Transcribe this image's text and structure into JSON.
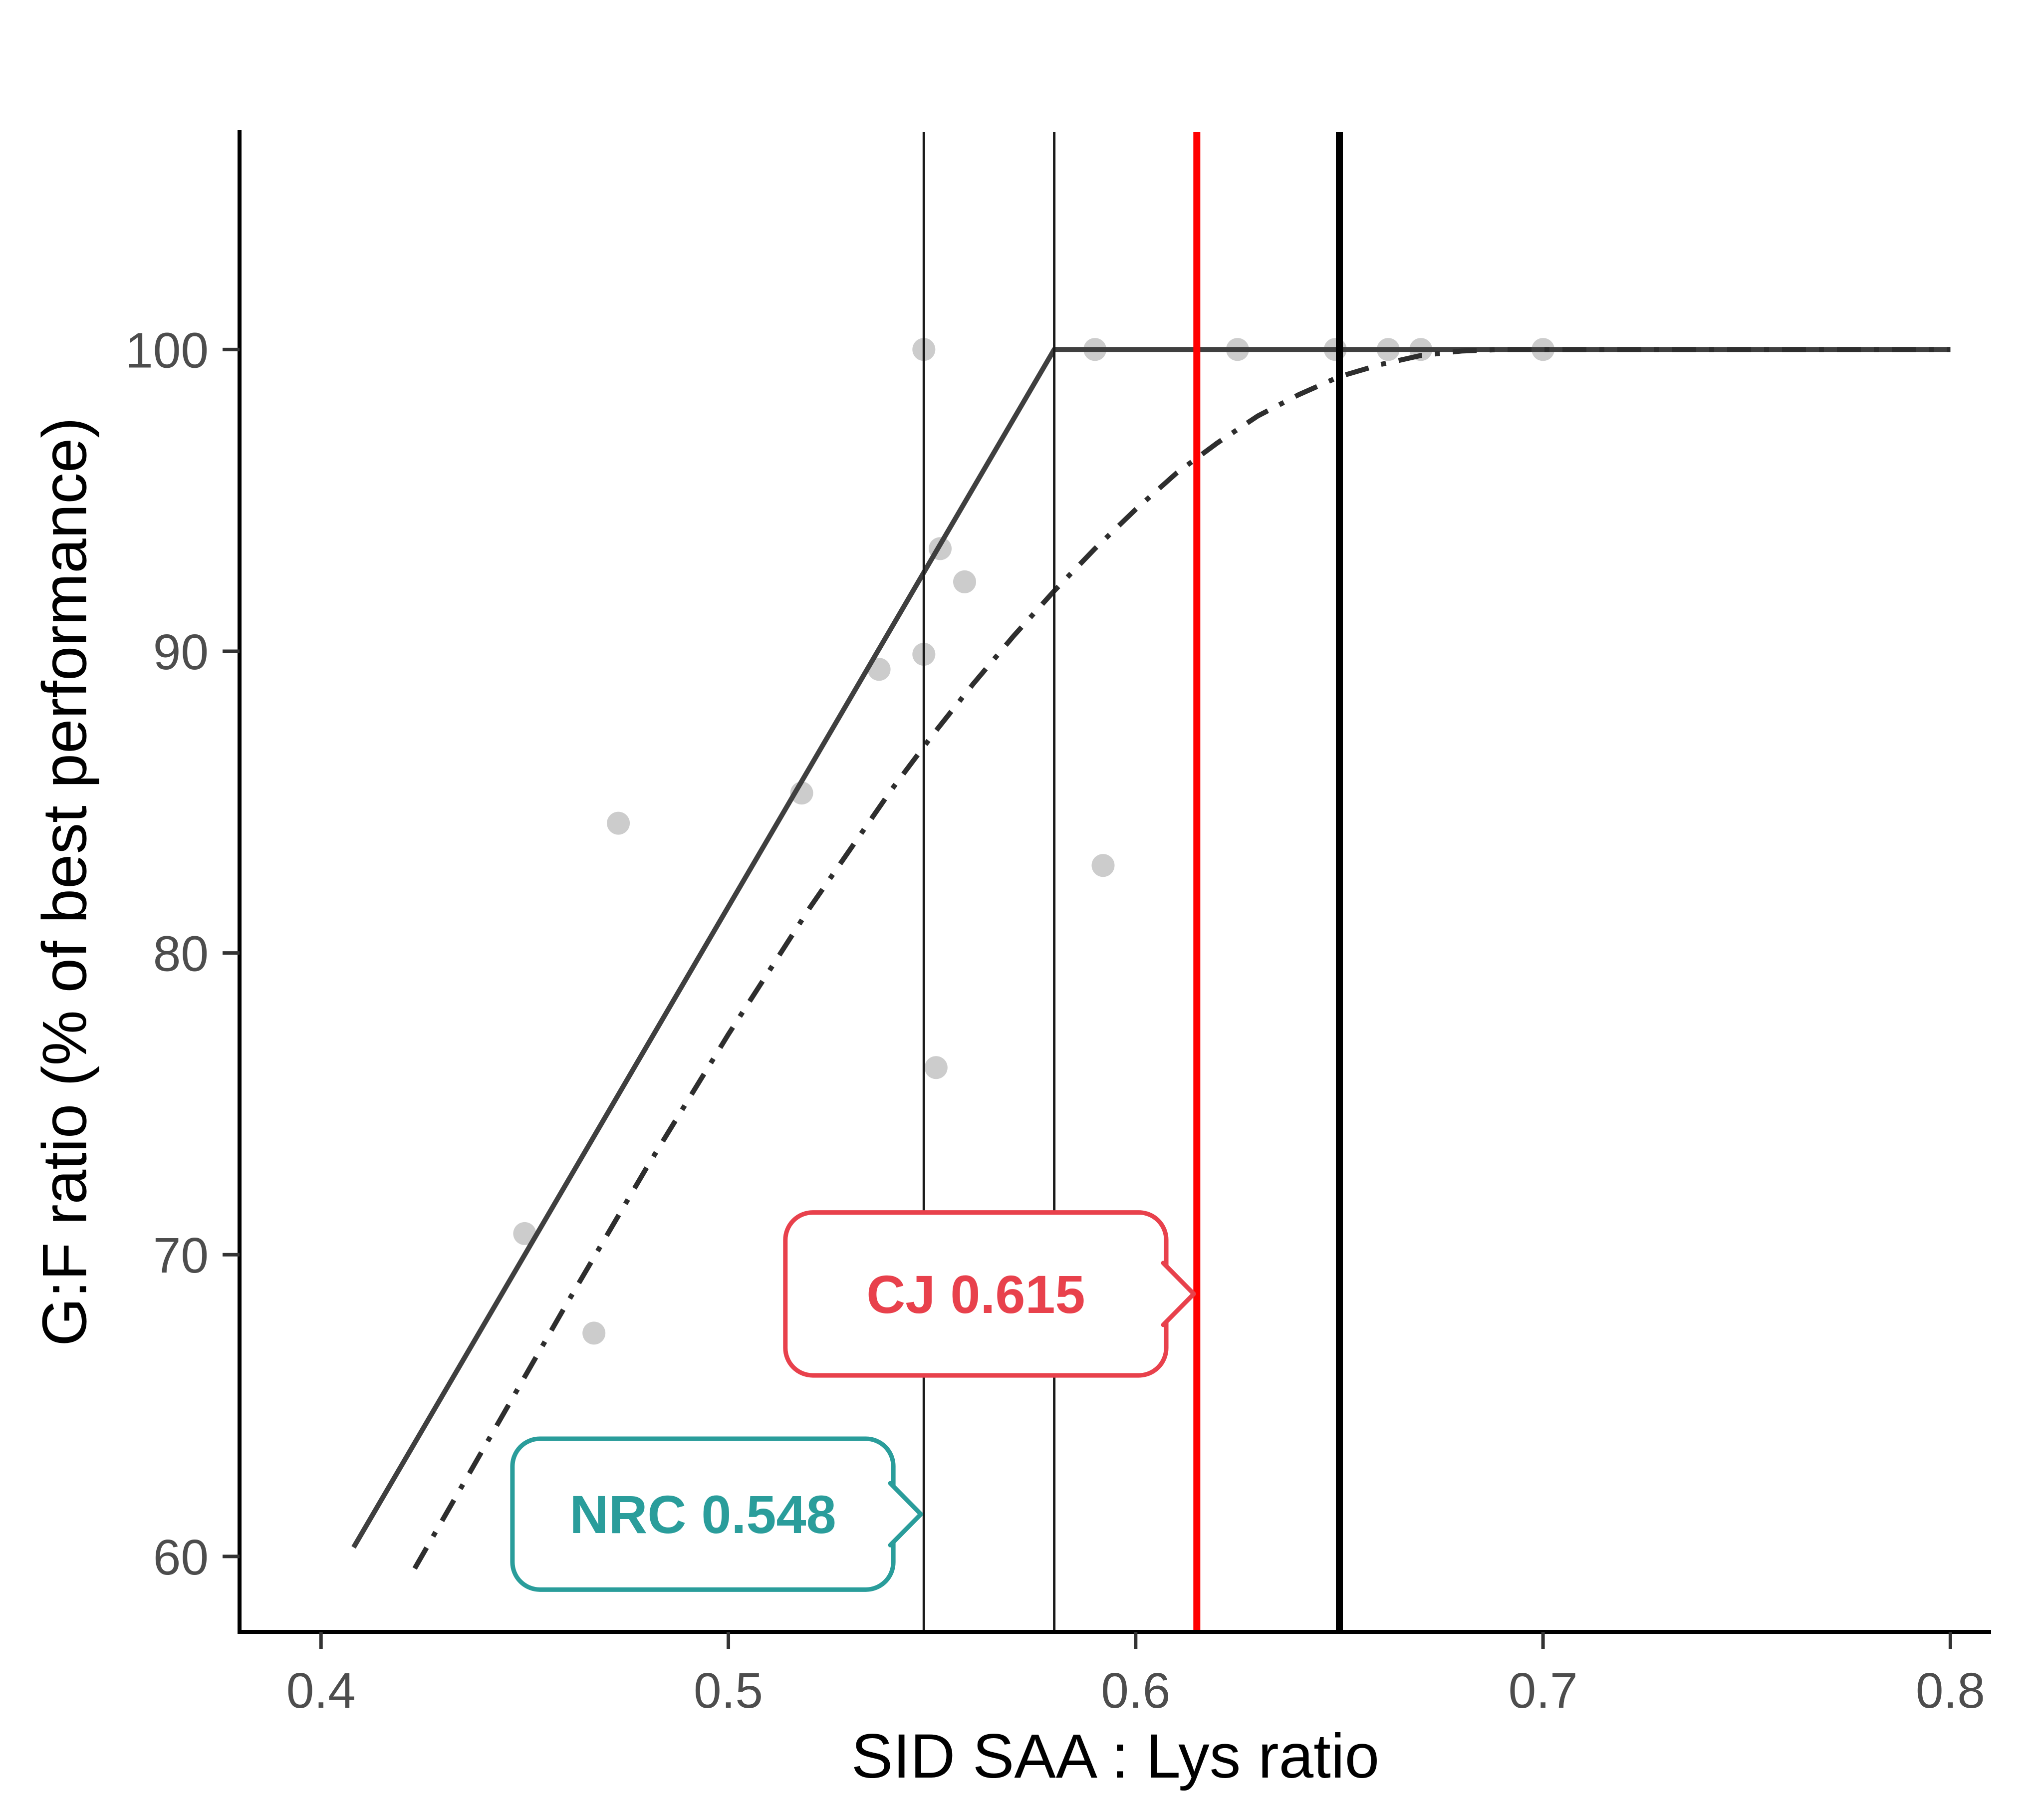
{
  "chart_data": {
    "type": "scatter",
    "title": "",
    "xlabel": "SID SAA : Lys ratio",
    "ylabel": "G:F ratio (% of best performance)",
    "xlim": [
      0.38,
      0.81
    ],
    "ylim": [
      57.5,
      107.2
    ],
    "grid": false,
    "legend": "none",
    "xticks": [
      0.4,
      0.5,
      0.6,
      0.7,
      0.8
    ],
    "xtick_labels": [
      "0.4",
      "0.5",
      "0.6",
      "0.7",
      "0.8"
    ],
    "yticks": [
      60,
      70,
      80,
      90,
      100
    ],
    "ytick_labels": [
      "60",
      "70",
      "80",
      "90",
      "100"
    ],
    "point_color": "#c3c3c3",
    "points": [
      {
        "x": 0.548,
        "y": 100
      },
      {
        "x": 0.59,
        "y": 100
      },
      {
        "x": 0.625,
        "y": 100
      },
      {
        "x": 0.649,
        "y": 100
      },
      {
        "x": 0.662,
        "y": 100
      },
      {
        "x": 0.67,
        "y": 100
      },
      {
        "x": 0.7,
        "y": 100
      },
      {
        "x": 0.552,
        "y": 93.4
      },
      {
        "x": 0.558,
        "y": 92.3
      },
      {
        "x": 0.548,
        "y": 89.9
      },
      {
        "x": 0.537,
        "y": 89.4
      },
      {
        "x": 0.518,
        "y": 85.3
      },
      {
        "x": 0.473,
        "y": 84.3
      },
      {
        "x": 0.592,
        "y": 82.9
      },
      {
        "x": 0.551,
        "y": 76.2
      },
      {
        "x": 0.45,
        "y": 70.7
      },
      {
        "x": 0.467,
        "y": 67.4
      }
    ],
    "series": [
      {
        "name": "solid-line",
        "style": "solid",
        "color": "#3f3f3f",
        "width": 10,
        "points": [
          [
            0.408,
            60.3
          ],
          [
            0.58,
            100
          ],
          [
            0.8,
            100
          ]
        ]
      },
      {
        "name": "dash-dot-curve",
        "style": "dashdot",
        "color": "#2e2e2e",
        "width": 10,
        "points": [
          [
            0.423,
            59.6
          ],
          [
            0.44,
            63.6
          ],
          [
            0.46,
            68.3
          ],
          [
            0.48,
            72.9
          ],
          [
            0.5,
            77.3
          ],
          [
            0.52,
            81.5
          ],
          [
            0.54,
            85.4
          ],
          [
            0.55,
            87.2
          ],
          [
            0.56,
            88.9
          ],
          [
            0.57,
            90.5
          ],
          [
            0.58,
            92.0
          ],
          [
            0.59,
            93.4
          ],
          [
            0.6,
            94.7
          ],
          [
            0.61,
            95.9
          ],
          [
            0.62,
            96.9
          ],
          [
            0.63,
            97.8
          ],
          [
            0.64,
            98.5
          ],
          [
            0.65,
            99.1
          ],
          [
            0.66,
            99.5
          ],
          [
            0.67,
            99.8
          ],
          [
            0.68,
            99.95
          ],
          [
            0.69,
            100
          ],
          [
            0.7,
            100
          ],
          [
            0.75,
            100
          ],
          [
            0.8,
            100
          ]
        ]
      }
    ],
    "vlines": [
      {
        "x": 0.548,
        "color": "#1a1a1a",
        "width": 5
      },
      {
        "x": 0.58,
        "color": "#1a1a1a",
        "width": 5
      },
      {
        "x": 0.615,
        "color": "#ff0000",
        "width": 14
      },
      {
        "x": 0.65,
        "color": "#000000",
        "width": 14
      }
    ],
    "annotations": [
      {
        "id": "cj",
        "label": "CJ 0.615",
        "color": "#e8414c",
        "box_x": [
          0.514,
          0.6075
        ],
        "box_y": [
          66.0,
          71.4
        ],
        "tip_x": 0.615,
        "tip_y": 68.7
      },
      {
        "id": "nrc",
        "label": "NRC 0.548",
        "color": "#2a9d9b",
        "box_x": [
          0.447,
          0.5405
        ],
        "box_y": [
          58.9,
          63.9
        ],
        "tip_x": 0.548,
        "tip_y": 61.4
      }
    ]
  }
}
